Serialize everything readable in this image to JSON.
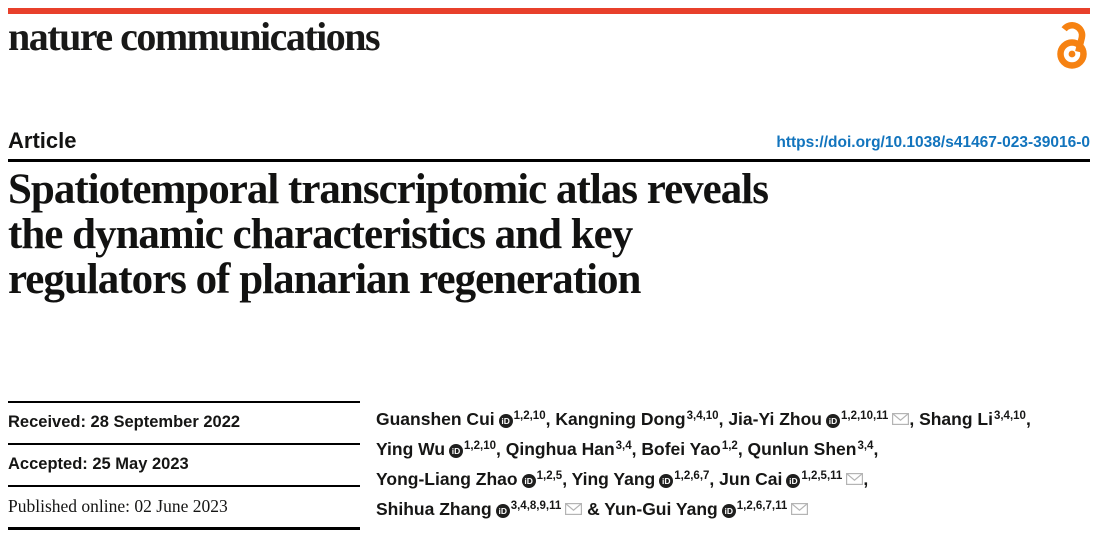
{
  "masthead": {
    "logo": "nature communications"
  },
  "header": {
    "article_label": "Article",
    "doi_link": "https://doi.org/10.1038/s41467-023-39016-0"
  },
  "title_lines": [
    "Spatiotemporal transcriptomic atlas reveals",
    "the dynamic characteristics and key",
    "regulators of planarian regeneration"
  ],
  "dates": {
    "received": "Received: 28 September 2022",
    "accepted": "Accepted: 25 May 2023",
    "published": "Published online: 02 June 2023"
  },
  "authors": {
    "lines": [
      [
        {
          "name": "Guanshen Cui",
          "orcid": true,
          "sup": "1,2,10",
          "mail": false,
          "sep": ", "
        },
        {
          "name": "Kangning Dong",
          "orcid": false,
          "sup": "3,4,10",
          "mail": false,
          "sep": ", "
        },
        {
          "name": "Jia-Yi Zhou",
          "orcid": true,
          "sup": "1,2,10,11",
          "mail": true,
          "sep": ", "
        },
        {
          "name": "Shang Li",
          "orcid": false,
          "sup": "3,4,10",
          "mail": false,
          "sep": ","
        }
      ],
      [
        {
          "name": "Ying Wu",
          "orcid": true,
          "sup": "1,2,10",
          "mail": false,
          "sep": ", "
        },
        {
          "name": "Qinghua Han",
          "orcid": false,
          "sup": "3,4",
          "mail": false,
          "sep": ", "
        },
        {
          "name": "Bofei Yao",
          "orcid": false,
          "sup": "1,2",
          "mail": false,
          "sep": ", "
        },
        {
          "name": "Qunlun Shen",
          "orcid": false,
          "sup": "3,4",
          "mail": false,
          "sep": ","
        }
      ],
      [
        {
          "name": "Yong-Liang Zhao",
          "orcid": true,
          "sup": "1,2,5",
          "mail": false,
          "sep": ", "
        },
        {
          "name": "Ying Yang",
          "orcid": true,
          "sup": "1,2,6,7",
          "mail": false,
          "sep": ", "
        },
        {
          "name": "Jun Cai",
          "orcid": true,
          "sup": "1,2,5,11",
          "mail": true,
          "sep": ","
        }
      ],
      [
        {
          "name": "Shihua Zhang",
          "orcid": true,
          "sup": "3,4,8,9,11",
          "mail": true,
          "sep": " & "
        },
        {
          "name": "Yun-Gui Yang",
          "orcid": true,
          "sup": "1,2,6,7,11",
          "mail": true,
          "sep": ""
        }
      ]
    ]
  },
  "icons": {
    "orcid_glyph": "iD",
    "open_access": "open-access-padlock",
    "envelope": "envelope"
  },
  "colors": {
    "masthead_red": "#e8402b",
    "open_access_orange": "#f68212",
    "link_blue": "#1274bd",
    "envelope_gray": "#b4b4b4",
    "text_black": "#151514"
  }
}
